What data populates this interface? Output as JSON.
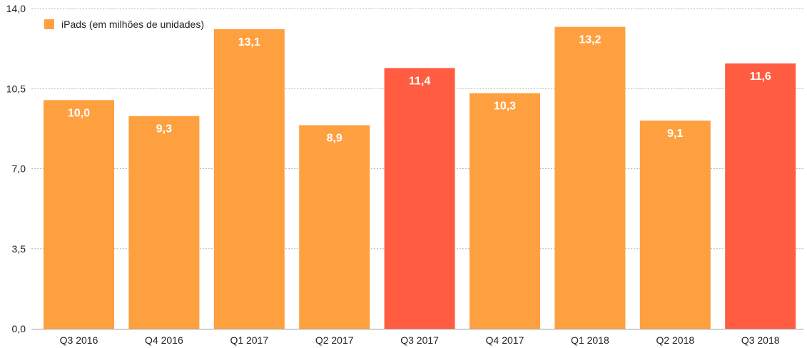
{
  "chart_data": {
    "type": "bar",
    "title": "",
    "xlabel": "",
    "ylabel": "",
    "categories": [
      "Q3 2016",
      "Q4 2016",
      "Q1 2017",
      "Q2 2017",
      "Q3 2017",
      "Q4 2017",
      "Q1 2018",
      "Q2 2018",
      "Q3 2018"
    ],
    "series": [
      {
        "name": "iPads (em milhões de unidades)",
        "values": [
          10.0,
          9.3,
          13.1,
          8.9,
          11.4,
          10.3,
          13.2,
          9.1,
          11.6
        ],
        "value_labels": [
          "10,0",
          "9,3",
          "13,1",
          "8,9",
          "11,4",
          "10,3",
          "13,2",
          "9,1",
          "11,6"
        ],
        "color": "#FFA040",
        "highlight_color": "#FF5C42",
        "highlight_categories": [
          "Q3 2017",
          "Q3 2018"
        ]
      }
    ],
    "ylim": [
      0,
      14
    ],
    "yticks": [
      0,
      3.5,
      7,
      10.5,
      14
    ],
    "ytick_labels": [
      "0,0",
      "3,5",
      "7,0",
      "10,5",
      "14,0"
    ],
    "grid": true,
    "legend_position": "top-left"
  }
}
